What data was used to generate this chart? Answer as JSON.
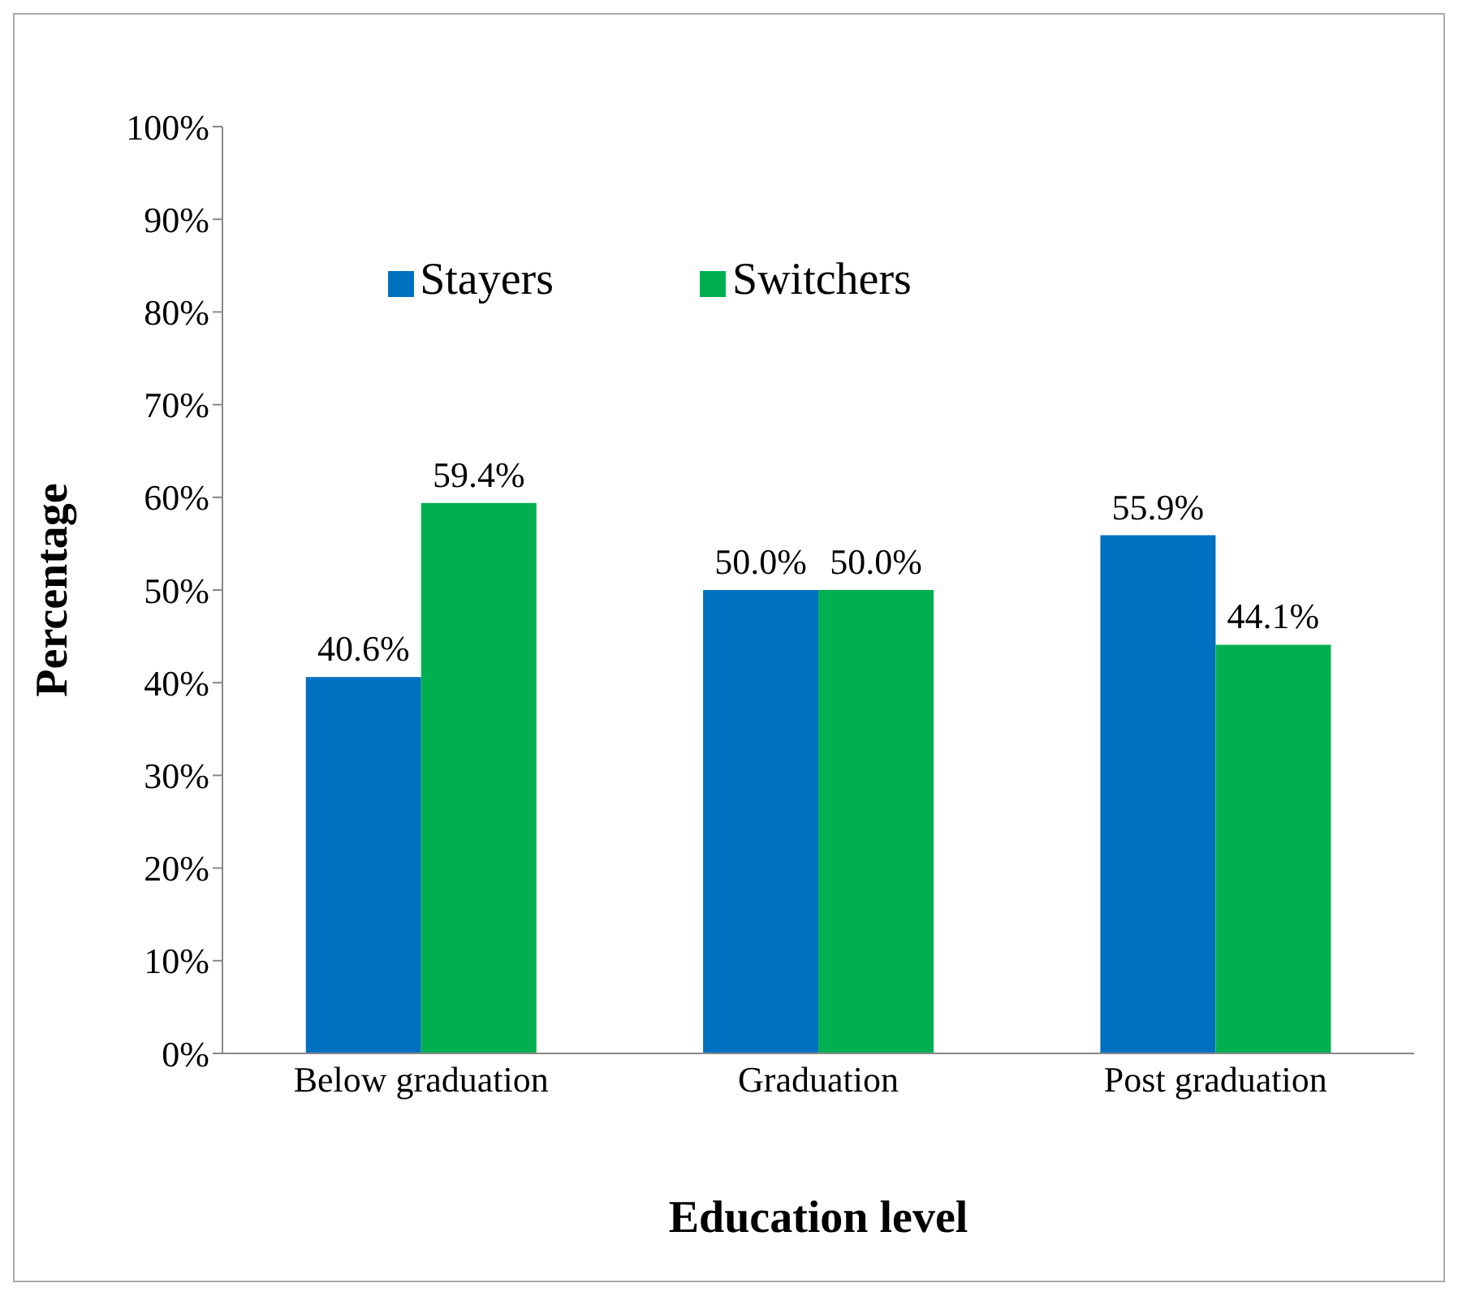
{
  "chart_data": {
    "type": "bar",
    "xlabel": "Education level",
    "ylabel": "Percentage",
    "categories": [
      "Below graduation",
      "Graduation",
      "Post graduation"
    ],
    "series": [
      {
        "name": "Stayers",
        "color": "#0070c0",
        "values": [
          40.6,
          50.0,
          55.9
        ],
        "value_labels": [
          "40.6%",
          "50.0%",
          "55.9%"
        ]
      },
      {
        "name": "Switchers",
        "color": "#00b050",
        "values": [
          59.4,
          50.0,
          44.1
        ],
        "value_labels": [
          "59.4%",
          "50.0%",
          "44.1%"
        ]
      }
    ],
    "ylim": [
      0,
      100
    ],
    "yticks": [
      {
        "value": 0,
        "label": "0%"
      },
      {
        "value": 10,
        "label": "10%"
      },
      {
        "value": 20,
        "label": "20%"
      },
      {
        "value": 30,
        "label": "30%"
      },
      {
        "value": 40,
        "label": "40%"
      },
      {
        "value": 50,
        "label": "50%"
      },
      {
        "value": 60,
        "label": "60%"
      },
      {
        "value": 70,
        "label": "70%"
      },
      {
        "value": 80,
        "label": "80%"
      },
      {
        "value": 90,
        "label": "90%"
      },
      {
        "value": 100,
        "label": "100%"
      }
    ],
    "grid": false,
    "legend": "top"
  }
}
